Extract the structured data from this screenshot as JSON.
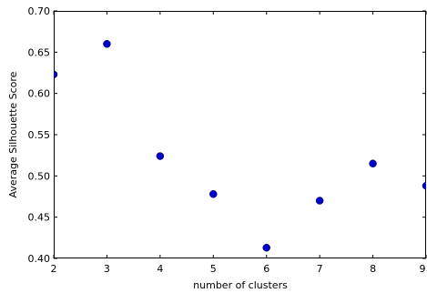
{
  "chart_data": {
    "type": "scatter",
    "title": "",
    "xlabel": "number of clusters",
    "ylabel": "Average Silhouette Score",
    "xlim": [
      2,
      9
    ],
    "ylim": [
      0.4,
      0.7
    ],
    "x_ticks": [
      "2",
      "3",
      "4",
      "5",
      "6",
      "7",
      "8",
      "9"
    ],
    "y_ticks": [
      "0.40",
      "0.45",
      "0.50",
      "0.55",
      "0.60",
      "0.65",
      "0.70"
    ],
    "grid": false,
    "marker_color": "#0000cc",
    "series": [
      {
        "x": [
          2,
          3,
          4,
          5,
          6,
          7,
          8,
          9
        ],
        "y": [
          0.623,
          0.66,
          0.524,
          0.478,
          0.413,
          0.47,
          0.515,
          0.488
        ]
      }
    ]
  }
}
